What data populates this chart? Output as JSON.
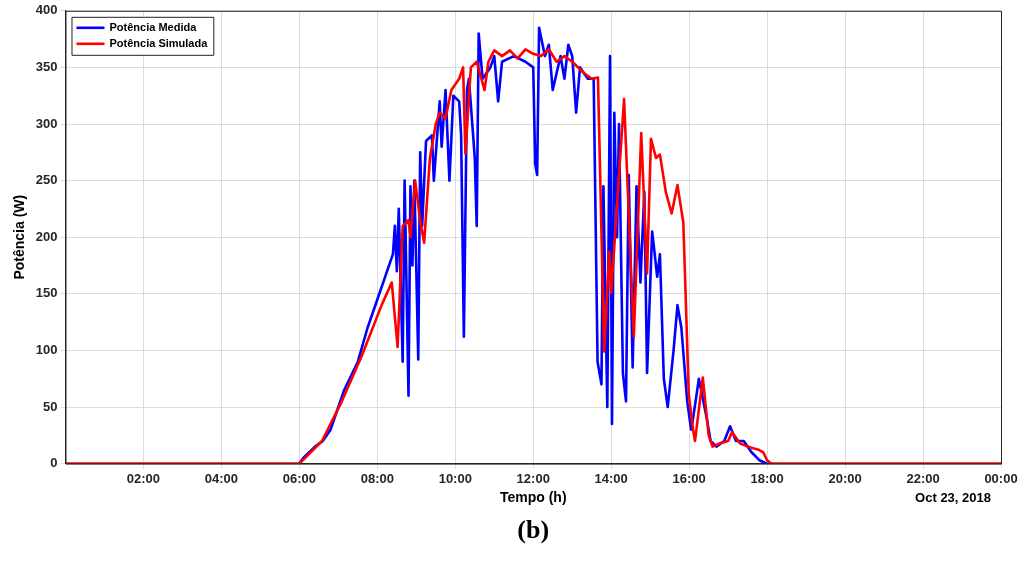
{
  "chart_data": {
    "type": "line",
    "xlabel": "Tempo (h)",
    "ylabel": "Potência (W)",
    "xlim": [
      0,
      24
    ],
    "xticks": [
      {
        "value": 2,
        "label": "02:00"
      },
      {
        "value": 4,
        "label": "04:00"
      },
      {
        "value": 6,
        "label": "06:00"
      },
      {
        "value": 8,
        "label": "08:00"
      },
      {
        "value": 10,
        "label": "10:00"
      },
      {
        "value": 12,
        "label": "12:00"
      },
      {
        "value": 14,
        "label": "14:00"
      },
      {
        "value": 16,
        "label": "16:00"
      },
      {
        "value": 18,
        "label": "18:00"
      },
      {
        "value": 20,
        "label": "20:00"
      },
      {
        "value": 22,
        "label": "22:00"
      },
      {
        "value": 24,
        "label": "00:00"
      }
    ],
    "ylim": [
      0,
      400
    ],
    "yticks": [
      0,
      50,
      100,
      150,
      200,
      250,
      300,
      350,
      400
    ],
    "grid": true,
    "legend": "top left",
    "line_style": "solid",
    "marker": "none",
    "annotations": [
      "Oct 23, 2018",
      "(b)"
    ],
    "series": [
      {
        "name": "Potência Medida",
        "color": "#0000ff",
        "x": [
          6.0,
          6.1,
          6.4,
          6.6,
          6.8,
          7.0,
          7.15,
          7.5,
          7.75,
          8.0,
          8.2,
          8.3,
          8.4,
          8.45,
          8.5,
          8.55,
          8.65,
          8.7,
          8.8,
          8.85,
          8.9,
          8.95,
          9.05,
          9.1,
          9.15,
          9.25,
          9.4,
          9.45,
          9.6,
          9.65,
          9.75,
          9.85,
          9.95,
          10.1,
          10.15,
          10.22,
          10.3,
          10.35,
          10.5,
          10.55,
          10.6,
          10.7,
          10.9,
          11.0,
          11.1,
          11.2,
          11.5,
          11.8,
          12.0,
          12.05,
          12.1,
          12.15,
          12.3,
          12.4,
          12.5,
          12.7,
          12.8,
          12.9,
          13.0,
          13.1,
          13.2,
          13.4,
          13.55,
          13.65,
          13.75,
          13.8,
          13.9,
          13.97,
          14.02,
          14.08,
          14.15,
          14.2,
          14.3,
          14.38,
          14.45,
          14.55,
          14.65,
          14.75,
          14.85,
          14.92,
          15.05,
          15.1,
          15.18,
          15.25,
          15.35,
          15.45,
          15.6,
          15.7,
          15.8,
          15.95,
          16.05,
          16.1,
          16.25,
          16.45,
          16.55,
          16.7,
          16.9,
          17.05,
          17.2,
          17.4,
          17.6,
          17.8,
          18.0
        ],
        "values": [
          0,
          5,
          15,
          20,
          30,
          50,
          65,
          90,
          120,
          145,
          165,
          175,
          185,
          210,
          170,
          225,
          90,
          250,
          60,
          245,
          175,
          250,
          92,
          275,
          210,
          285,
          290,
          250,
          320,
          280,
          330,
          250,
          325,
          320,
          290,
          112,
          330,
          340,
          270,
          210,
          380,
          340,
          350,
          360,
          320,
          355,
          360,
          355,
          350,
          265,
          255,
          385,
          360,
          370,
          330,
          360,
          340,
          370,
          360,
          310,
          350,
          340,
          340,
          90,
          70,
          245,
          50,
          360,
          35,
          310,
          200,
          300,
          80,
          55,
          255,
          85,
          245,
          160,
          240,
          80,
          205,
          190,
          165,
          185,
          75,
          50,
          100,
          140,
          120,
          55,
          30,
          40,
          75,
          40,
          20,
          15,
          20,
          33,
          20,
          20,
          10,
          3,
          0
        ]
      },
      {
        "name": "Potência Simulada",
        "color": "#ff0000",
        "x": [
          0,
          5.9,
          6.0,
          6.58,
          7.09,
          7.6,
          8.11,
          8.37,
          8.52,
          8.65,
          8.8,
          8.85,
          8.97,
          9.1,
          9.2,
          9.35,
          9.5,
          9.6,
          9.75,
          9.9,
          10.1,
          10.2,
          10.26,
          10.4,
          10.55,
          10.75,
          10.85,
          11.0,
          11.2,
          11.4,
          11.6,
          11.8,
          12.0,
          12.2,
          12.4,
          12.6,
          12.8,
          13.0,
          13.3,
          13.5,
          13.66,
          13.82,
          13.95,
          14.0,
          14.33,
          14.58,
          14.77,
          14.92,
          15.02,
          15.15,
          15.25,
          15.4,
          15.55,
          15.7,
          15.85,
          15.99,
          16.1,
          16.15,
          16.35,
          16.5,
          16.6,
          16.8,
          17.0,
          17.1,
          17.3,
          17.5,
          17.6,
          17.8,
          17.9,
          18.0,
          18.1,
          24
        ],
        "values": [
          0,
          0,
          0,
          20,
          55,
          95,
          140,
          160,
          103,
          210,
          215,
          200,
          250,
          215,
          195,
          270,
          300,
          310,
          305,
          330,
          340,
          350,
          274,
          350,
          355,
          330,
          355,
          365,
          360,
          365,
          358,
          366,
          362,
          360,
          366,
          355,
          360,
          355,
          345,
          340,
          341,
          99,
          187,
          151,
          322,
          112,
          292,
          168,
          287,
          270,
          273,
          240,
          221,
          246,
          213,
          61,
          30,
          20,
          76,
          25,
          15,
          18,
          20,
          28,
          18,
          15,
          14,
          12,
          10,
          3,
          0,
          0
        ]
      }
    ]
  }
}
